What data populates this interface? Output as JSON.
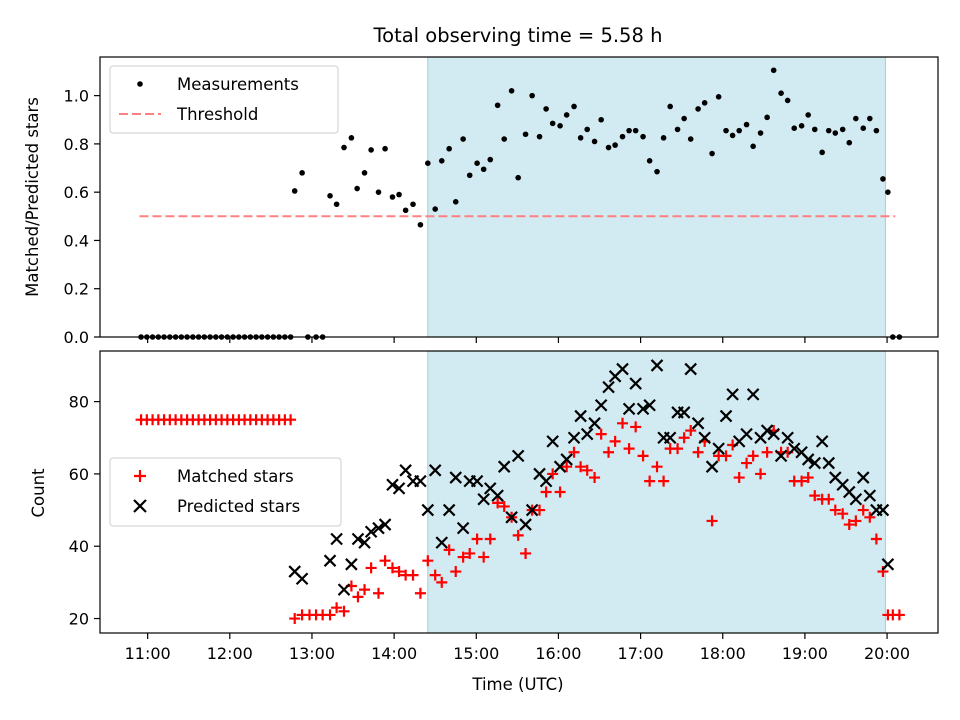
{
  "chart_data": {
    "type": "scatter",
    "title": "Total observing time = 5.58 h",
    "colors": {
      "measurement": "#000000",
      "threshold": "#ff8080",
      "matched": "#ff0000",
      "predicted": "#000000",
      "span": "#add8e6"
    },
    "x_ticks": [
      {
        "h": 11,
        "label": "11:00"
      },
      {
        "h": 12,
        "label": "12:00"
      },
      {
        "h": 13,
        "label": "13:00"
      },
      {
        "h": 14,
        "label": "14:00"
      },
      {
        "h": 15,
        "label": "15:00"
      },
      {
        "h": 16,
        "label": "16:00"
      },
      {
        "h": 17,
        "label": "17:00"
      },
      {
        "h": 18,
        "label": "18:00"
      },
      {
        "h": 19,
        "label": "19:00"
      },
      {
        "h": 20,
        "label": "20:00"
      }
    ],
    "xlabel": "Time (UTC)",
    "xlim": [
      10.42,
      20.62
    ],
    "highlight_span": [
      14.41,
      19.98
    ],
    "top": {
      "ylabel": "Matched/Predicted stars",
      "ylim": [
        0,
        1.16
      ],
      "y_ticks": [
        {
          "v": 0.0,
          "label": "0.0"
        },
        {
          "v": 0.2,
          "label": "0.2"
        },
        {
          "v": 0.4,
          "label": "0.4"
        },
        {
          "v": 0.6,
          "label": "0.6"
        },
        {
          "v": 0.8,
          "label": "0.8"
        },
        {
          "v": 1.0,
          "label": "1.0"
        }
      ],
      "threshold": 0.5,
      "threshold_range": [
        10.9,
        20.1
      ],
      "legend": {
        "measurements": "Measurements",
        "threshold": "Threshold"
      },
      "measurements": [
        [
          10.92,
          0
        ],
        [
          10.99,
          0
        ],
        [
          11.06,
          0
        ],
        [
          11.13,
          0
        ],
        [
          11.2,
          0
        ],
        [
          11.27,
          0
        ],
        [
          11.34,
          0
        ],
        [
          11.41,
          0
        ],
        [
          11.48,
          0
        ],
        [
          11.55,
          0
        ],
        [
          11.62,
          0
        ],
        [
          11.69,
          0
        ],
        [
          11.76,
          0
        ],
        [
          11.83,
          0
        ],
        [
          11.9,
          0
        ],
        [
          11.97,
          0
        ],
        [
          12.04,
          0
        ],
        [
          12.11,
          0
        ],
        [
          12.18,
          0
        ],
        [
          12.25,
          0
        ],
        [
          12.32,
          0
        ],
        [
          12.39,
          0
        ],
        [
          12.46,
          0
        ],
        [
          12.53,
          0
        ],
        [
          12.6,
          0
        ],
        [
          12.67,
          0
        ],
        [
          12.74,
          0
        ],
        [
          12.79,
          0.605
        ],
        [
          12.88,
          0.68
        ],
        [
          12.95,
          0
        ],
        [
          13.05,
          0
        ],
        [
          13.13,
          0
        ],
        [
          13.22,
          0.585
        ],
        [
          13.3,
          0.55
        ],
        [
          13.39,
          0.785
        ],
        [
          13.48,
          0.825
        ],
        [
          13.55,
          0.615
        ],
        [
          13.64,
          0.68
        ],
        [
          13.72,
          0.775
        ],
        [
          13.81,
          0.6
        ],
        [
          13.89,
          0.78
        ],
        [
          13.98,
          0.58
        ],
        [
          14.06,
          0.59
        ],
        [
          14.14,
          0.525
        ],
        [
          14.23,
          0.55
        ],
        [
          14.32,
          0.465
        ],
        [
          14.41,
          0.72
        ],
        [
          14.5,
          0.53
        ],
        [
          14.58,
          0.73
        ],
        [
          14.67,
          0.78
        ],
        [
          14.75,
          0.56
        ],
        [
          14.84,
          0.82
        ],
        [
          14.92,
          0.67
        ],
        [
          15.01,
          0.72
        ],
        [
          15.09,
          0.695
        ],
        [
          15.17,
          0.735
        ],
        [
          15.26,
          0.96
        ],
        [
          15.34,
          0.82
        ],
        [
          15.43,
          1.02
        ],
        [
          15.51,
          0.66
        ],
        [
          15.6,
          0.84
        ],
        [
          15.68,
          1.0
        ],
        [
          15.77,
          0.83
        ],
        [
          15.85,
          0.945
        ],
        [
          15.93,
          0.885
        ],
        [
          16.02,
          0.875
        ],
        [
          16.1,
          0.92
        ],
        [
          16.19,
          0.955
        ],
        [
          16.27,
          0.825
        ],
        [
          16.35,
          0.86
        ],
        [
          16.44,
          0.81
        ],
        [
          16.52,
          0.9
        ],
        [
          16.61,
          0.785
        ],
        [
          16.69,
          0.795
        ],
        [
          16.78,
          0.83
        ],
        [
          16.86,
          0.855
        ],
        [
          16.94,
          0.855
        ],
        [
          17.03,
          0.83
        ],
        [
          17.11,
          0.73
        ],
        [
          17.2,
          0.685
        ],
        [
          17.28,
          0.825
        ],
        [
          17.36,
          0.955
        ],
        [
          17.45,
          0.86
        ],
        [
          17.53,
          0.905
        ],
        [
          17.61,
          0.82
        ],
        [
          17.7,
          0.945
        ],
        [
          17.78,
          0.97
        ],
        [
          17.87,
          0.76
        ],
        [
          17.95,
          0.995
        ],
        [
          18.04,
          0.855
        ],
        [
          18.12,
          0.835
        ],
        [
          18.2,
          0.855
        ],
        [
          18.29,
          0.88
        ],
        [
          18.37,
          0.79
        ],
        [
          18.46,
          0.845
        ],
        [
          18.54,
          0.91
        ],
        [
          18.62,
          1.105
        ],
        [
          18.71,
          1.01
        ],
        [
          18.79,
          0.98
        ],
        [
          18.87,
          0.865
        ],
        [
          18.96,
          0.875
        ],
        [
          19.04,
          0.92
        ],
        [
          19.12,
          0.86
        ],
        [
          19.21,
          0.765
        ],
        [
          19.29,
          0.855
        ],
        [
          19.37,
          0.845
        ],
        [
          19.46,
          0.86
        ],
        [
          19.54,
          0.805
        ],
        [
          19.62,
          0.905
        ],
        [
          19.71,
          0.865
        ],
        [
          19.79,
          0.905
        ],
        [
          19.87,
          0.855
        ],
        [
          19.95,
          0.655
        ],
        [
          20.01,
          0.6
        ],
        [
          20.07,
          0
        ],
        [
          20.15,
          0
        ]
      ]
    },
    "bottom": {
      "ylabel": "Count",
      "ylim": [
        16,
        94
      ],
      "y_ticks": [
        {
          "v": 20,
          "label": "20"
        },
        {
          "v": 40,
          "label": "40"
        },
        {
          "v": 60,
          "label": "60"
        },
        {
          "v": 80,
          "label": "80"
        }
      ],
      "legend": {
        "matched": "Matched stars",
        "predicted": "Predicted stars"
      },
      "matched": [
        [
          10.92,
          75
        ],
        [
          10.99,
          75
        ],
        [
          11.06,
          75
        ],
        [
          11.13,
          75
        ],
        [
          11.2,
          75
        ],
        [
          11.27,
          75
        ],
        [
          11.34,
          75
        ],
        [
          11.41,
          75
        ],
        [
          11.48,
          75
        ],
        [
          11.55,
          75
        ],
        [
          11.62,
          75
        ],
        [
          11.69,
          75
        ],
        [
          11.76,
          75
        ],
        [
          11.83,
          75
        ],
        [
          11.9,
          75
        ],
        [
          11.97,
          75
        ],
        [
          12.04,
          75
        ],
        [
          12.11,
          75
        ],
        [
          12.18,
          75
        ],
        [
          12.25,
          75
        ],
        [
          12.32,
          75
        ],
        [
          12.39,
          75
        ],
        [
          12.46,
          75
        ],
        [
          12.53,
          75
        ],
        [
          12.6,
          75
        ],
        [
          12.67,
          75
        ],
        [
          12.74,
          75
        ],
        [
          12.79,
          20
        ],
        [
          12.88,
          21
        ],
        [
          12.97,
          21
        ],
        [
          13.05,
          21
        ],
        [
          13.13,
          21
        ],
        [
          13.22,
          21
        ],
        [
          13.3,
          23
        ],
        [
          13.39,
          22
        ],
        [
          13.48,
          29
        ],
        [
          13.56,
          26
        ],
        [
          13.64,
          28
        ],
        [
          13.72,
          34
        ],
        [
          13.81,
          27
        ],
        [
          13.89,
          36
        ],
        [
          13.98,
          34
        ],
        [
          14.06,
          33
        ],
        [
          14.14,
          32
        ],
        [
          14.23,
          32
        ],
        [
          14.32,
          27
        ],
        [
          14.41,
          36
        ],
        [
          14.5,
          32
        ],
        [
          14.58,
          30
        ],
        [
          14.67,
          39
        ],
        [
          14.75,
          33
        ],
        [
          14.84,
          37
        ],
        [
          14.92,
          38
        ],
        [
          15.01,
          42
        ],
        [
          15.09,
          37
        ],
        [
          15.17,
          42
        ],
        [
          15.26,
          52
        ],
        [
          15.34,
          51
        ],
        [
          15.43,
          48
        ],
        [
          15.51,
          43
        ],
        [
          15.6,
          38
        ],
        [
          15.68,
          50
        ],
        [
          15.77,
          50
        ],
        [
          15.85,
          55
        ],
        [
          15.93,
          60
        ],
        [
          16.02,
          55
        ],
        [
          16.1,
          62
        ],
        [
          16.19,
          66
        ],
        [
          16.27,
          62
        ],
        [
          16.35,
          61
        ],
        [
          16.44,
          59
        ],
        [
          16.52,
          71
        ],
        [
          16.61,
          66
        ],
        [
          16.69,
          69
        ],
        [
          16.78,
          74
        ],
        [
          16.86,
          67
        ],
        [
          16.94,
          73
        ],
        [
          17.03,
          65
        ],
        [
          17.11,
          58
        ],
        [
          17.2,
          62
        ],
        [
          17.28,
          58
        ],
        [
          17.36,
          67
        ],
        [
          17.45,
          67
        ],
        [
          17.53,
          70
        ],
        [
          17.61,
          72
        ],
        [
          17.7,
          66
        ],
        [
          17.78,
          69
        ],
        [
          17.87,
          47
        ],
        [
          17.95,
          65
        ],
        [
          18.04,
          65
        ],
        [
          18.12,
          68
        ],
        [
          18.2,
          59
        ],
        [
          18.29,
          63
        ],
        [
          18.37,
          65
        ],
        [
          18.46,
          60
        ],
        [
          18.54,
          66
        ],
        [
          18.62,
          72
        ],
        [
          18.71,
          66
        ],
        [
          18.79,
          66
        ],
        [
          18.87,
          58
        ],
        [
          18.96,
          58
        ],
        [
          19.04,
          59
        ],
        [
          19.12,
          54
        ],
        [
          19.21,
          53
        ],
        [
          19.29,
          53
        ],
        [
          19.37,
          50
        ],
        [
          19.46,
          49
        ],
        [
          19.54,
          46
        ],
        [
          19.62,
          47
        ],
        [
          19.71,
          50
        ],
        [
          19.79,
          48
        ],
        [
          19.87,
          42
        ],
        [
          19.95,
          33
        ],
        [
          20.01,
          21
        ],
        [
          20.07,
          21
        ],
        [
          20.15,
          21
        ]
      ],
      "predicted": [
        [
          12.79,
          33
        ],
        [
          12.88,
          31
        ],
        [
          13.22,
          36
        ],
        [
          13.3,
          42
        ],
        [
          13.39,
          28
        ],
        [
          13.48,
          35
        ],
        [
          13.56,
          42
        ],
        [
          13.64,
          41
        ],
        [
          13.72,
          44
        ],
        [
          13.81,
          45
        ],
        [
          13.89,
          46
        ],
        [
          13.98,
          57
        ],
        [
          14.06,
          56
        ],
        [
          14.14,
          61
        ],
        [
          14.23,
          58
        ],
        [
          14.32,
          58
        ],
        [
          14.41,
          50
        ],
        [
          14.5,
          61
        ],
        [
          14.58,
          41
        ],
        [
          14.67,
          50
        ],
        [
          14.75,
          59
        ],
        [
          14.84,
          45
        ],
        [
          14.92,
          58
        ],
        [
          15.01,
          58
        ],
        [
          15.09,
          53
        ],
        [
          15.17,
          56
        ],
        [
          15.26,
          54
        ],
        [
          15.34,
          62
        ],
        [
          15.43,
          48
        ],
        [
          15.51,
          65
        ],
        [
          15.6,
          46
        ],
        [
          15.68,
          50
        ],
        [
          15.77,
          60
        ],
        [
          15.85,
          58
        ],
        [
          15.93,
          69
        ],
        [
          16.02,
          62
        ],
        [
          16.1,
          64
        ],
        [
          16.19,
          70
        ],
        [
          16.27,
          76
        ],
        [
          16.35,
          71
        ],
        [
          16.44,
          74
        ],
        [
          16.52,
          79
        ],
        [
          16.61,
          84
        ],
        [
          16.69,
          87
        ],
        [
          16.78,
          89
        ],
        [
          16.86,
          78
        ],
        [
          16.94,
          85
        ],
        [
          17.03,
          78
        ],
        [
          17.11,
          79
        ],
        [
          17.2,
          90
        ],
        [
          17.28,
          70
        ],
        [
          17.36,
          70
        ],
        [
          17.45,
          77
        ],
        [
          17.53,
          77
        ],
        [
          17.61,
          89
        ],
        [
          17.7,
          74
        ],
        [
          17.78,
          70
        ],
        [
          17.87,
          62
        ],
        [
          17.95,
          67
        ],
        [
          18.04,
          76
        ],
        [
          18.12,
          82
        ],
        [
          18.2,
          69
        ],
        [
          18.29,
          71
        ],
        [
          18.37,
          82
        ],
        [
          18.46,
          70
        ],
        [
          18.54,
          72
        ],
        [
          18.62,
          71
        ],
        [
          18.71,
          65
        ],
        [
          18.79,
          70
        ],
        [
          18.87,
          67
        ],
        [
          18.96,
          66
        ],
        [
          19.04,
          64
        ],
        [
          19.12,
          63
        ],
        [
          19.21,
          69
        ],
        [
          19.29,
          63
        ],
        [
          19.37,
          59
        ],
        [
          19.46,
          57
        ],
        [
          19.54,
          55
        ],
        [
          19.62,
          53
        ],
        [
          19.71,
          59
        ],
        [
          19.79,
          54
        ],
        [
          19.87,
          50
        ],
        [
          19.95,
          50
        ],
        [
          20.01,
          35
        ]
      ]
    }
  }
}
